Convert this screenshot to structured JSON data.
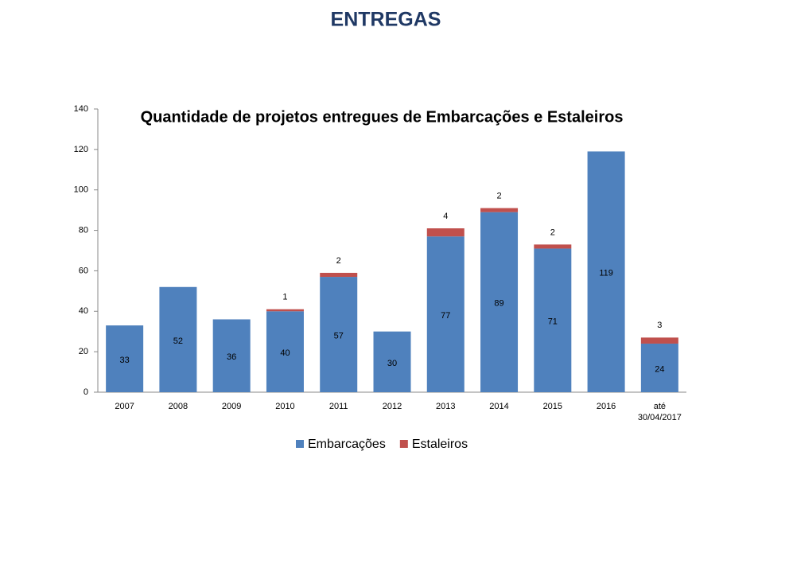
{
  "page_title": "ENTREGAS",
  "chart_data": {
    "type": "stacked_bar",
    "title": "Quantidade de projetos entregues de Embarcações e Estaleiros",
    "categories": [
      "2007",
      "2008",
      "2009",
      "2010",
      "2011",
      "2012",
      "2013",
      "2014",
      "2015",
      "2016",
      "até 30/04/2017"
    ],
    "series": [
      {
        "name": "Embarcações",
        "color": "#4f81bd",
        "values": [
          33,
          52,
          36,
          40,
          57,
          30,
          77,
          89,
          71,
          119,
          24
        ]
      },
      {
        "name": "Estaleiros",
        "color": "#c0504d",
        "values": [
          null,
          null,
          null,
          1,
          2,
          null,
          4,
          2,
          2,
          null,
          3
        ]
      }
    ],
    "ylim": [
      0,
      140
    ],
    "yticks": [
      0,
      20,
      40,
      60,
      80,
      100,
      120,
      140
    ],
    "grid": false,
    "legend": "bottom"
  }
}
